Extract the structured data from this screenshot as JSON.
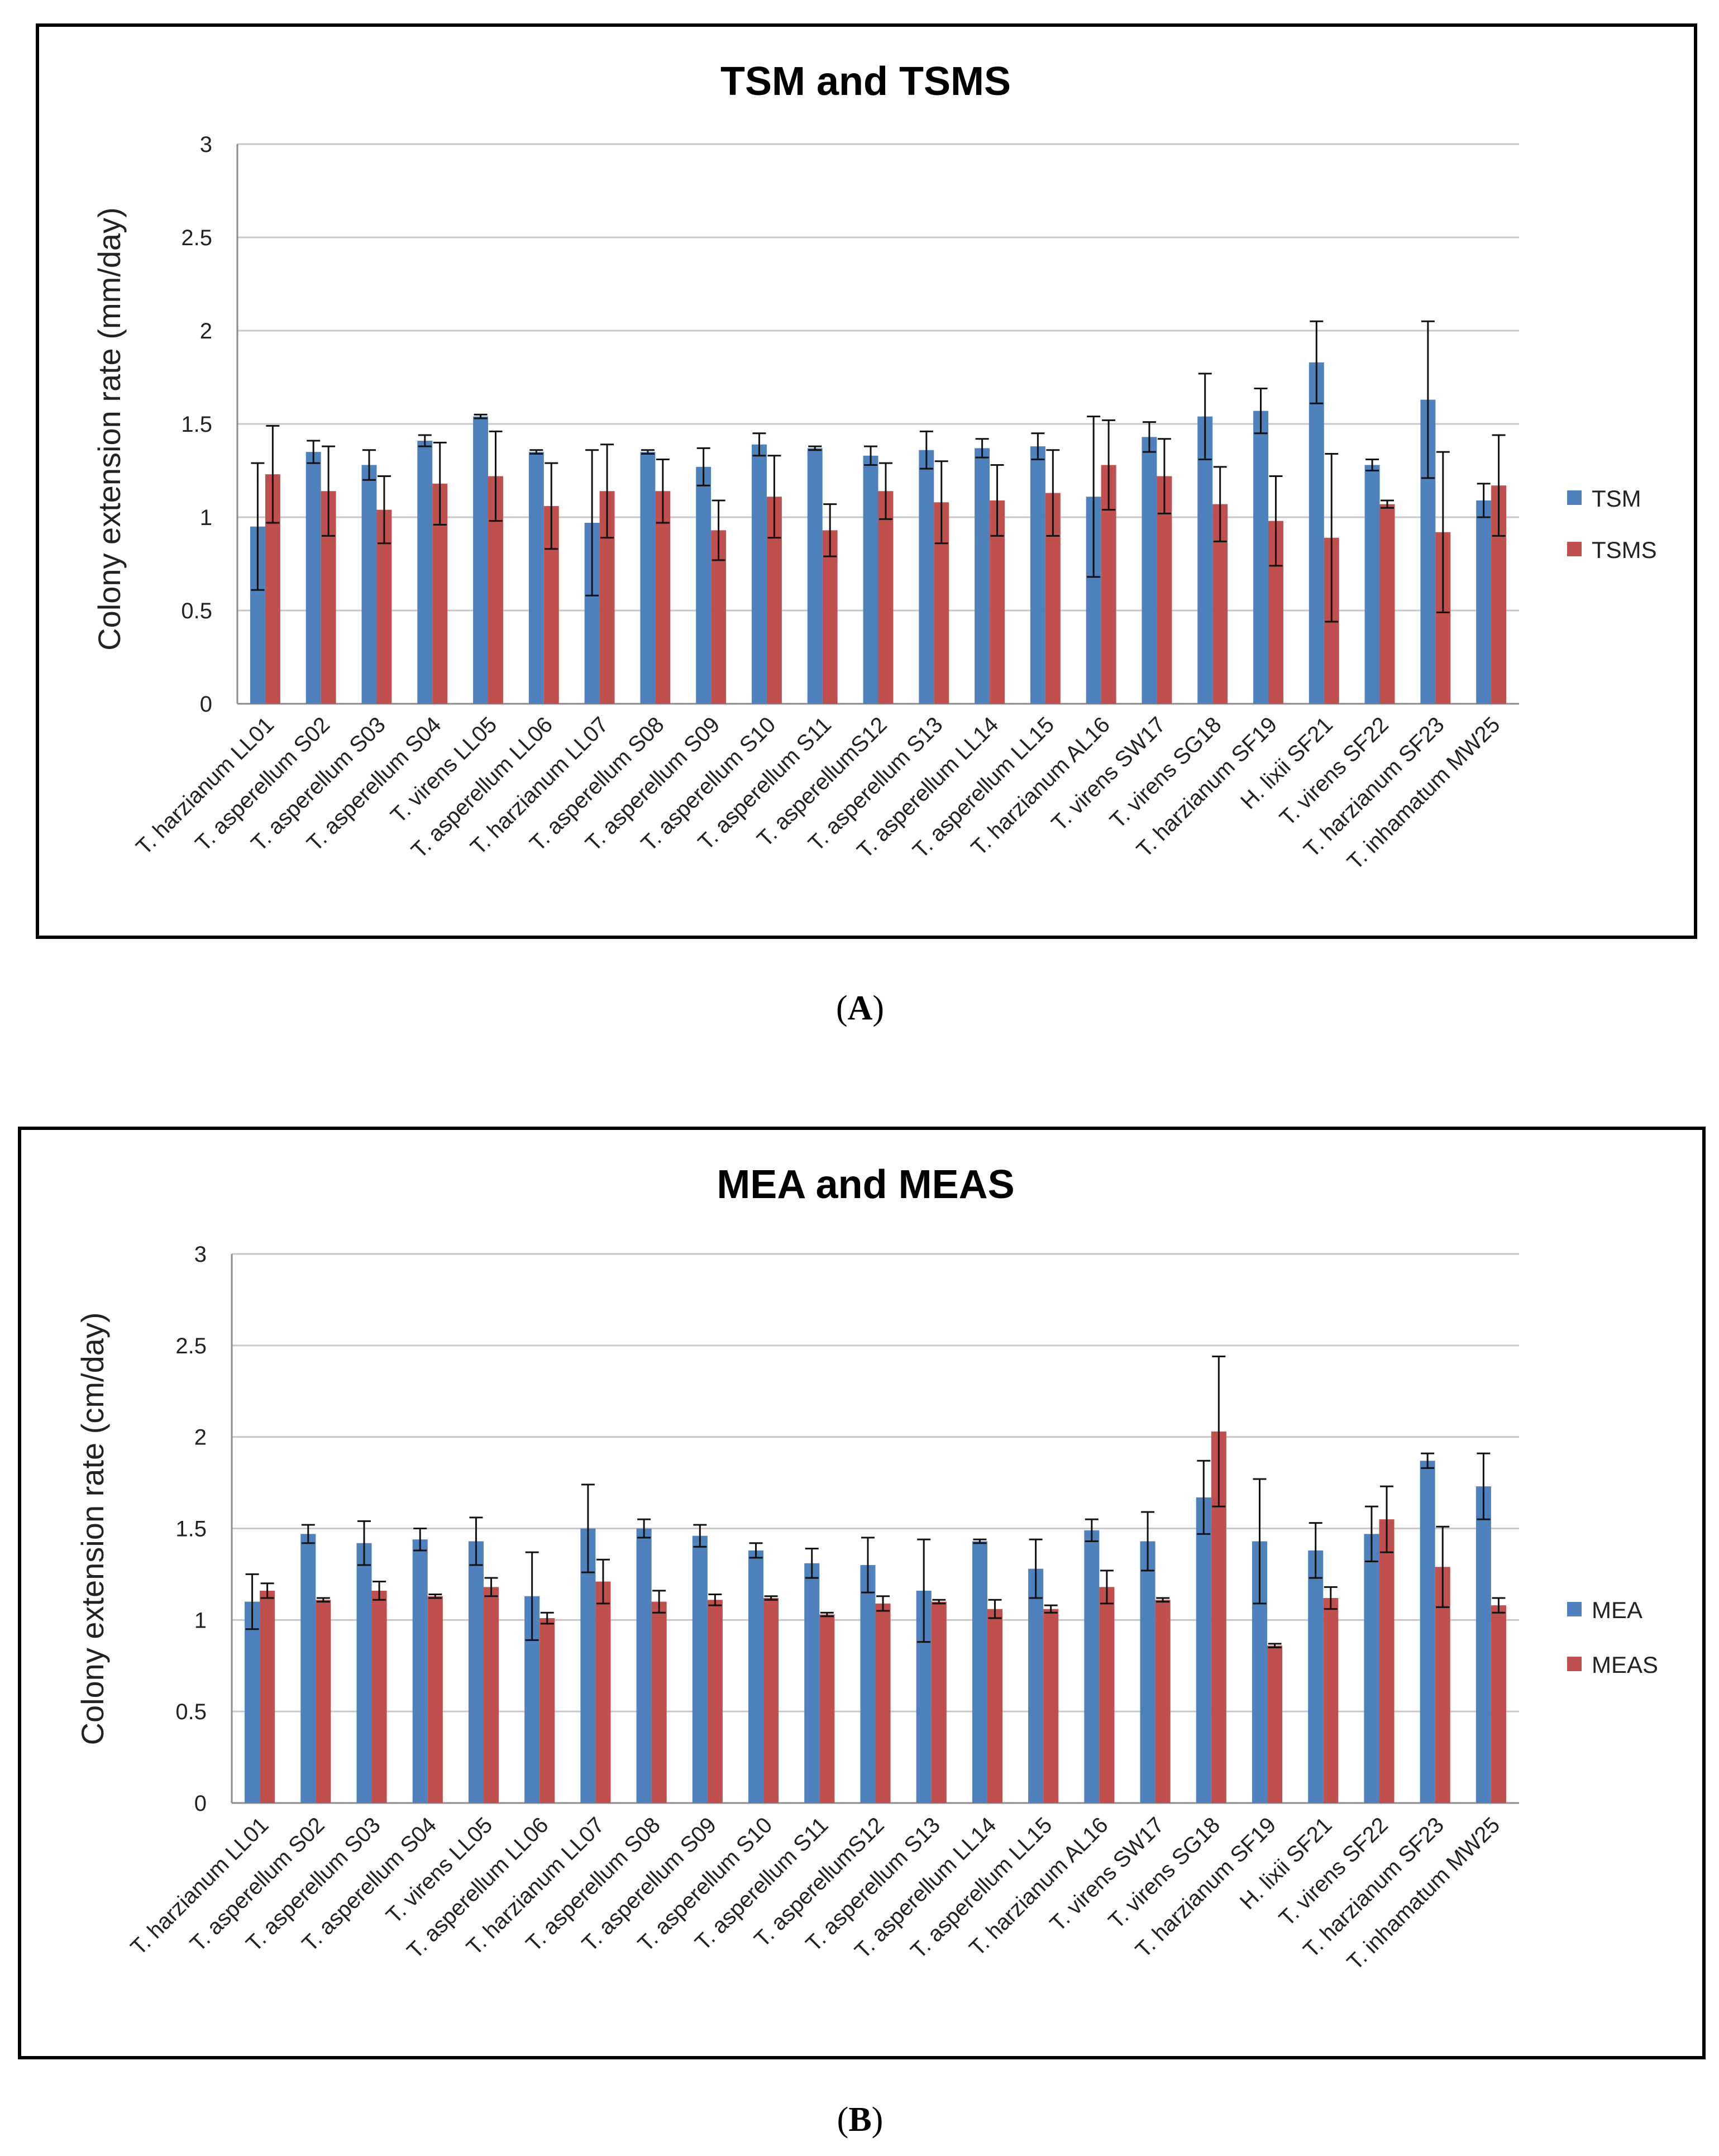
{
  "colors": {
    "primary": "#4F81BD",
    "secondary": "#C0504D"
  },
  "chart_data": [
    {
      "type": "bar",
      "title": "TSM and TSMS",
      "panel_label": "A",
      "xlabel": "",
      "ylabel": "Colony extension rate (mm/day)",
      "ylim": [
        0,
        3
      ],
      "yticks": [
        "0",
        "0.5",
        "1",
        "1.5",
        "2",
        "2.5",
        "3"
      ],
      "grid": true,
      "legend_position": "right",
      "categories": [
        "T. harzianum LL01",
        "T. asperellum S02",
        "T. asperellum S03",
        "T. asperellum S04",
        "T. virens LL05",
        "T. asperellum LL06",
        "T. harzianum LL07",
        "T. asperellum S08",
        "T. asperellum S09",
        "T. asperellum S10",
        "T. asperellum S11",
        "T. asperellumS12",
        "T. asperellum S13",
        "T. asperellum LL14",
        "T. asperellum LL15",
        "T. harzianum AL16",
        "T. virens SW17",
        "T. virens SG18",
        "T. harzianum SF19",
        "H. lixii SF21",
        "T. virens SF22",
        "T. harzianum SF23",
        "T. inhamatum MW25"
      ],
      "series": [
        {
          "name": "TSM",
          "values": [
            0.95,
            1.35,
            1.28,
            1.41,
            1.54,
            1.35,
            0.97,
            1.35,
            1.27,
            1.39,
            1.37,
            1.33,
            1.36,
            1.37,
            1.38,
            1.11,
            1.43,
            1.54,
            1.57,
            1.83,
            1.28,
            1.63,
            1.09
          ],
          "errors": [
            0.34,
            0.06,
            0.08,
            0.03,
            0.01,
            0.01,
            0.39,
            0.01,
            0.1,
            0.06,
            0.01,
            0.05,
            0.1,
            0.05,
            0.07,
            0.43,
            0.08,
            0.23,
            0.12,
            0.22,
            0.03,
            0.42,
            0.09
          ]
        },
        {
          "name": "TSMS",
          "values": [
            1.23,
            1.14,
            1.04,
            1.18,
            1.22,
            1.06,
            1.14,
            1.14,
            0.93,
            1.11,
            0.93,
            1.14,
            1.08,
            1.09,
            1.13,
            1.28,
            1.22,
            1.07,
            0.98,
            0.89,
            1.07,
            0.92,
            1.17
          ],
          "errors": [
            0.26,
            0.24,
            0.18,
            0.22,
            0.24,
            0.23,
            0.25,
            0.17,
            0.16,
            0.22,
            0.14,
            0.15,
            0.22,
            0.19,
            0.23,
            0.24,
            0.2,
            0.2,
            0.24,
            0.45,
            0.02,
            0.43,
            0.27
          ]
        }
      ]
    },
    {
      "type": "bar",
      "title": "MEA and MEAS",
      "panel_label": "B",
      "xlabel": "",
      "ylabel": "Colony extension rate (cm/day)",
      "ylim": [
        0,
        3
      ],
      "yticks": [
        "0",
        "0.5",
        "1",
        "1.5",
        "2",
        "2.5",
        "3"
      ],
      "grid": true,
      "legend_position": "right",
      "categories": [
        "T. harzianum LL01",
        "T. asperellum S02",
        "T. asperellum S03",
        "T. asperellum S04",
        "T. virens LL05",
        "T. asperellum LL06",
        "T. harzianum LL07",
        "T. asperellum S08",
        "T. asperellum S09",
        "T. asperellum S10",
        "T. asperellum S11",
        "T. asperellumS12",
        "T. asperellum S13",
        "T. asperellum LL14",
        "T. asperellum LL15",
        "T. harzianum AL16",
        "T. virens SW17",
        "T. virens SG18",
        "T. harzianum SF19",
        "H. lixii SF21",
        "T. virens SF22",
        "T. harzianum SF23",
        "T. inhamatum MW25"
      ],
      "series": [
        {
          "name": "MEA",
          "values": [
            1.1,
            1.47,
            1.42,
            1.44,
            1.43,
            1.13,
            1.5,
            1.5,
            1.46,
            1.38,
            1.31,
            1.3,
            1.16,
            1.43,
            1.28,
            1.49,
            1.43,
            1.67,
            1.43,
            1.38,
            1.47,
            1.87,
            1.73
          ],
          "errors": [
            0.15,
            0.05,
            0.12,
            0.06,
            0.13,
            0.24,
            0.24,
            0.05,
            0.06,
            0.04,
            0.08,
            0.15,
            0.28,
            0.01,
            0.16,
            0.06,
            0.16,
            0.2,
            0.34,
            0.15,
            0.15,
            0.04,
            0.18
          ]
        },
        {
          "name": "MEAS",
          "values": [
            1.16,
            1.11,
            1.16,
            1.13,
            1.18,
            1.01,
            1.21,
            1.1,
            1.11,
            1.12,
            1.03,
            1.09,
            1.1,
            1.06,
            1.06,
            1.18,
            1.11,
            2.03,
            0.86,
            1.12,
            1.55,
            1.29,
            1.08
          ],
          "errors": [
            0.04,
            0.01,
            0.05,
            0.01,
            0.05,
            0.03,
            0.12,
            0.06,
            0.03,
            0.01,
            0.01,
            0.04,
            0.01,
            0.05,
            0.02,
            0.09,
            0.01,
            0.41,
            0.01,
            0.06,
            0.18,
            0.22,
            0.04
          ]
        }
      ]
    }
  ]
}
